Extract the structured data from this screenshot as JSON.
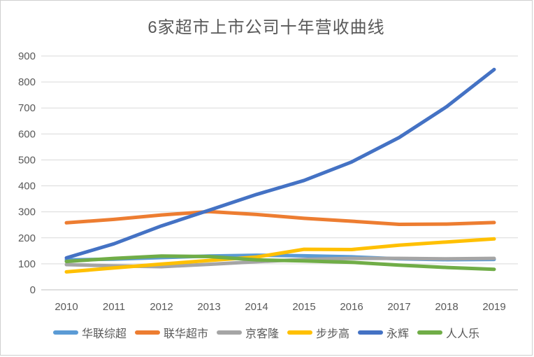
{
  "chart_data": {
    "type": "line",
    "title": "6家超市上市公司十年营收曲线",
    "categories": [
      "2010",
      "2011",
      "2012",
      "2013",
      "2014",
      "2015",
      "2016",
      "2017",
      "2018",
      "2019"
    ],
    "series": [
      {
        "key": "hualian-zongchao",
        "name": "华联综超",
        "color": "#5B9BD5",
        "values": [
          115,
          118,
          124,
          130,
          133,
          131,
          127,
          119,
          116,
          117
        ]
      },
      {
        "key": "lianhua-chaoshi",
        "name": "联华超市",
        "color": "#ED7D31",
        "values": [
          258,
          271,
          288,
          301,
          290,
          275,
          264,
          252,
          253,
          259
        ]
      },
      {
        "key": "jingkelong",
        "name": "京客隆",
        "color": "#A5A5A5",
        "values": [
          97,
          92,
          89,
          98,
          108,
          117,
          121,
          121,
          119,
          121
        ]
      },
      {
        "key": "bubugao",
        "name": "步步高",
        "color": "#FFC000",
        "values": [
          69,
          84,
          99,
          113,
          126,
          156,
          155,
          172,
          184,
          196
        ]
      },
      {
        "key": "yonghui",
        "name": "永辉",
        "color": "#4472C4",
        "values": [
          123,
          177,
          246,
          306,
          367,
          421,
          492,
          586,
          705,
          848
        ]
      },
      {
        "key": "renrenle",
        "name": "人人乐",
        "color": "#70AD47",
        "values": [
          109,
          121,
          130,
          128,
          115,
          111,
          106,
          95,
          86,
          79
        ]
      }
    ],
    "xlabel": "",
    "ylabel": "",
    "ylim": [
      0,
      900
    ],
    "ytick_step": 100,
    "grid": true,
    "legend_position": "bottom",
    "gridline_color": "#D9D9D9",
    "axis_line_color": "#BFBFBF",
    "text_color": "#595959"
  }
}
